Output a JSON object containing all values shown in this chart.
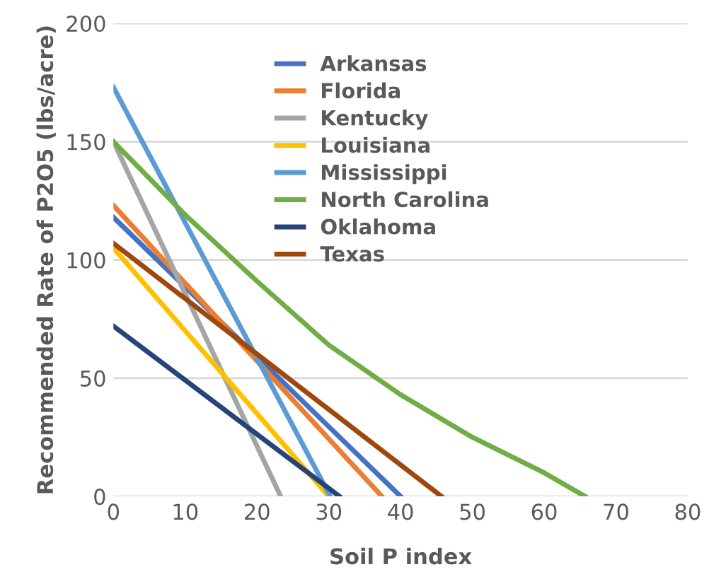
{
  "chart_data": {
    "type": "line",
    "xlabel": "Soil P index",
    "ylabel": "Recommended Rate of P2O5 (lbs/acre)",
    "xlim": [
      0,
      80
    ],
    "xticks": [
      0,
      10,
      20,
      30,
      40,
      50,
      60,
      70,
      80
    ],
    "ylim": [
      0,
      200
    ],
    "yticks": [
      0,
      50,
      100,
      150,
      200
    ],
    "grid": "y",
    "legend": "top",
    "marker": "none",
    "line_style": "solid",
    "series": [
      {
        "name": "Arkansas",
        "color": "#4472c4",
        "x": [
          0,
          40
        ],
        "values": [
          118,
          0
        ]
      },
      {
        "name": "Florida",
        "color": "#ed7d31",
        "x": [
          0,
          37.4
        ],
        "values": [
          123,
          0
        ]
      },
      {
        "name": "Kentucky",
        "color": "#a5a5a5",
        "x": [
          0,
          23.3
        ],
        "values": [
          150,
          0
        ]
      },
      {
        "name": "Louisiana",
        "color": "#ffc000",
        "x": [
          0,
          30
        ],
        "values": [
          105,
          0
        ]
      },
      {
        "name": "Mississippi",
        "color": "#5b9bd5",
        "x": [
          0,
          30.2
        ],
        "values": [
          173,
          0
        ]
      },
      {
        "name": "North Carolina",
        "color": "#70ad47",
        "x": [
          0,
          10,
          20,
          30,
          40,
          50,
          60,
          65.7
        ],
        "values": [
          150,
          119,
          91,
          64,
          43,
          25,
          10,
          0
        ]
      },
      {
        "name": "Oklahoma",
        "color": "#264478",
        "x": [
          0,
          31.5
        ],
        "values": [
          72,
          0
        ]
      },
      {
        "name": "Texas",
        "color": "#9e480e",
        "x": [
          0,
          45.7
        ],
        "values": [
          107,
          0
        ]
      }
    ]
  }
}
